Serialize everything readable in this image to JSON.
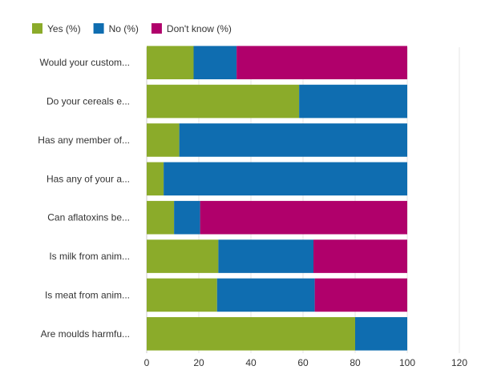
{
  "chart_data": {
    "type": "bar",
    "orientation": "horizontal",
    "stacked": true,
    "categories": [
      "Would your custom...",
      "Do your cereals e...",
      "Has any member of...",
      "Has any of your a...",
      "Can aflatoxins be...",
      "Is milk from anim...",
      "Is meat from anim...",
      "Are moulds harmfu..."
    ],
    "series": [
      {
        "name": "Yes (%)",
        "color": "#8bab2a",
        "values": [
          18,
          58.5,
          12.5,
          6.5,
          10.5,
          27.5,
          27,
          80
        ]
      },
      {
        "name": "No (%)",
        "color": "#0f6db0",
        "values": [
          16.5,
          41.5,
          87.5,
          93.5,
          10,
          36.5,
          37.5,
          20
        ]
      },
      {
        "name": "Don't know (%)",
        "color": "#b0006b",
        "values": [
          65.5,
          0,
          0,
          0,
          79.5,
          36,
          35.5,
          0
        ]
      }
    ],
    "xlim": [
      0,
      120
    ],
    "xticks": [
      0,
      20,
      40,
      60,
      80,
      100,
      120
    ],
    "grid": true,
    "legend": "top-left"
  }
}
